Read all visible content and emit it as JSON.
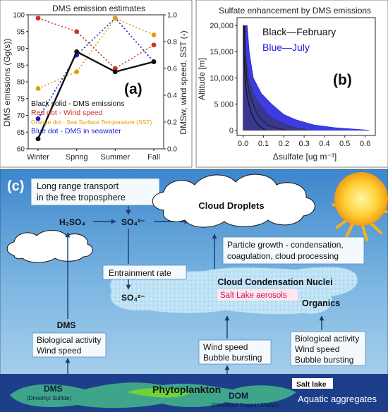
{
  "panel_a": {
    "title": "DMS emission estimates",
    "label": "(a)",
    "ylabel_left": "DMS emissions (Gg(s))",
    "ylabel_right": "DMSw, wind speed, SST (-)",
    "legend": [
      {
        "text": "Black solid - DMS emissions",
        "color": "#111111"
      },
      {
        "text": "Red dot - Wind speed",
        "color": "#d0302a"
      },
      {
        "text": "Orange dot - Sea Surface Temperature (SST)",
        "color": "#e0a000"
      },
      {
        "text": "Blue dot - DMS in seawater",
        "color": "#1a1adc"
      }
    ],
    "chart_data": {
      "type": "line",
      "categories": [
        "Winter",
        "Spring",
        "Summer",
        "Fall"
      ],
      "left_ticks": [
        "60",
        "65",
        "70",
        "75",
        "80",
        "85",
        "90",
        "95",
        "100"
      ],
      "right_ticks": [
        "0.0",
        "0.2",
        "0.4",
        "0.6",
        "0.8",
        "1.0"
      ],
      "ylim_left": [
        60,
        100
      ],
      "ylim_right": [
        0,
        1
      ],
      "series": [
        {
          "name": "DMS emissions",
          "axis": "left",
          "values": [
            63,
            89,
            83,
            86
          ],
          "color": "#111111",
          "style": "solid"
        },
        {
          "name": "Wind speed",
          "axis": "left",
          "values": [
            99,
            95,
            84,
            91
          ],
          "color": "#d0302a",
          "style": "dot"
        },
        {
          "name": "Sea Surface Temperature (SST)",
          "axis": "left",
          "values": [
            78,
            83,
            99,
            94
          ],
          "color": "#e0a000",
          "style": "dot"
        },
        {
          "name": "DMS in seawater",
          "axis": "left",
          "values": [
            69,
            88,
            99,
            86
          ],
          "color": "#1a1adc",
          "style": "dot"
        }
      ]
    }
  },
  "panel_b": {
    "title": "Sulfate enhancement by DMS emissions",
    "label": "(b)",
    "ylabel": "Altitude [m]",
    "xlabel": "Δsulfate [ug m⁻³]",
    "legend_black": "Black—February",
    "legend_blue": "Blue—July",
    "chart_data": {
      "type": "area",
      "x_ticks": [
        "0.0",
        "0.1",
        "0.2",
        "0.3",
        "0.4",
        "0.5",
        "0.6"
      ],
      "y_ticks": [
        "0",
        "5 000",
        "10,000",
        "15,000",
        "20,000"
      ],
      "xlim": [
        -0.03,
        0.65
      ],
      "ylim": [
        -1000,
        21500
      ],
      "series": [
        {
          "name": "February",
          "color": "#333333",
          "altitude": [
            20000,
            15000,
            10000,
            7000,
            5000,
            3000,
            2000,
            1000,
            500,
            200,
            0
          ],
          "max": [
            0.01,
            0.012,
            0.025,
            0.05,
            0.08,
            0.12,
            0.16,
            0.21,
            0.26,
            0.3,
            0.32
          ]
        },
        {
          "name": "July",
          "color": "#1a1adc",
          "altitude": [
            20000,
            15000,
            10000,
            7000,
            5000,
            3000,
            2000,
            1000,
            500,
            200,
            0
          ],
          "max": [
            0.02,
            0.03,
            0.05,
            0.09,
            0.14,
            0.2,
            0.26,
            0.35,
            0.45,
            0.55,
            0.62
          ]
        }
      ]
    }
  },
  "panel_c": {
    "label": "(c)",
    "long_range": "Long range transport\nin the free troposphere",
    "h2so4": "H₂SO₄",
    "so4_top": "SO₄²⁻",
    "so4_mid": "SO₄²⁻",
    "cloud_droplets": "Cloud Droplets",
    "particle_growth": "Particle growth - condensation,\ncoagulation, cloud processing",
    "entrainment": "Entrainment rate",
    "ccn": "Cloud Condensation Nuclei",
    "salt_lake_aerosols": "Salt Lake aerosols",
    "organics": "Organics",
    "dms": "DMS",
    "bio_wind": "Biological activity\nWind speed",
    "wind_bubble": "Wind speed\nBubble bursting",
    "bio_wind_bubble": "Biological activity\nWind speed\nBubble bursting",
    "phytoplankton": "Phytoplankton",
    "dms_bottom": "DMS",
    "dimethyl_sulfide": "(Dimethyl Sulfide)",
    "dom": "DOM",
    "dissolved_organic": "(Dissolved Organic Matter)",
    "salt_lake": "Salt lake",
    "aquatic": "Aquatic aggregates"
  }
}
